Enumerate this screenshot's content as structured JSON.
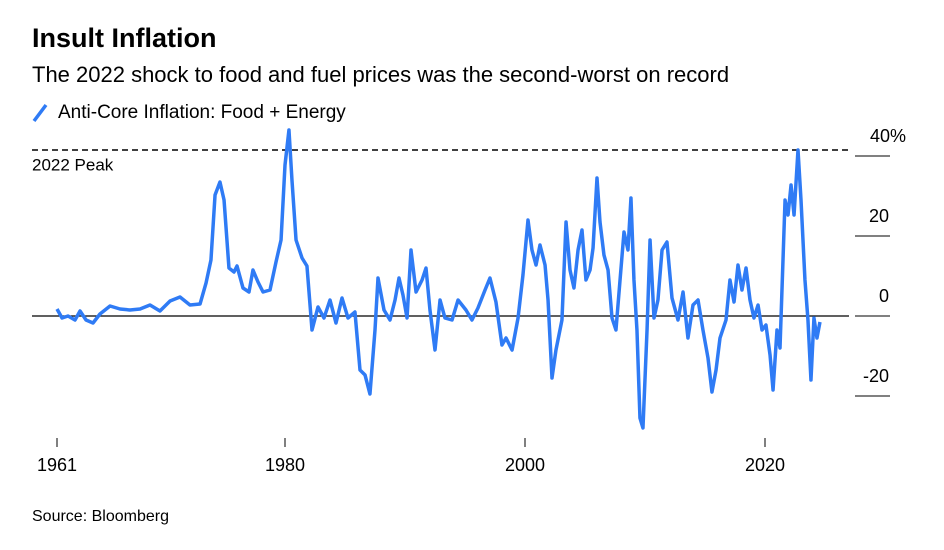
{
  "chart_data": {
    "type": "line",
    "title": "Insult Inflation",
    "subtitle": "The 2022 shock to food and fuel prices was the second-worst on record",
    "source": "Source: Bloomberg",
    "annotation": {
      "label": "2022 Peak",
      "value": 41.5
    },
    "x": [
      1961.0,
      1961.42,
      1961.92,
      1962.5,
      1962.92,
      1963.42,
      1964.0,
      1964.58,
      1965.42,
      1966.25,
      1967.08,
      1967.92,
      1968.75,
      1969.58,
      1970.42,
      1971.25,
      1972.08,
      1972.92,
      1973.42,
      1973.83,
      1974.17,
      1974.58,
      1974.92,
      1975.33,
      1975.75,
      1976.0,
      1976.5,
      1977.0,
      1977.33,
      1977.75,
      1978.17,
      1978.75,
      1979.25,
      1979.67,
      1980.0,
      1980.33,
      1980.58,
      1980.92,
      1981.42,
      1981.83,
      1982.25,
      1982.75,
      1983.25,
      1983.75,
      1984.25,
      1984.75,
      1985.25,
      1985.83,
      1986.25,
      1986.67,
      1987.08,
      1987.5,
      1987.75,
      1988.25,
      1988.75,
      1989.17,
      1989.5,
      1989.83,
      1990.17,
      1990.5,
      1990.92,
      1991.42,
      1991.75,
      1992.08,
      1992.5,
      1992.92,
      1993.33,
      1993.92,
      1994.42,
      1995.08,
      1995.58,
      1996.08,
      1996.67,
      1997.08,
      1997.58,
      1998.08,
      1998.42,
      1998.92,
      1999.42,
      1999.83,
      2000.25,
      2000.58,
      2000.92,
      2001.25,
      2001.67,
      2001.92,
      2002.25,
      2002.58,
      2003.08,
      2003.42,
      2003.75,
      2004.08,
      2004.42,
      2004.75,
      2005.08,
      2005.42,
      2005.67,
      2006.0,
      2006.25,
      2006.58,
      2006.92,
      2007.25,
      2007.58,
      2007.92,
      2008.25,
      2008.58,
      2008.83,
      2009.08,
      2009.33,
      2009.58,
      2009.83,
      2010.17,
      2010.42,
      2010.75,
      2011.08,
      2011.42,
      2011.83,
      2012.25,
      2012.75,
      2013.17,
      2013.58,
      2014.0,
      2014.42,
      2014.83,
      2015.25,
      2015.58,
      2015.92,
      2016.25,
      2016.75,
      2017.08,
      2017.42,
      2017.75,
      2018.08,
      2018.42,
      2018.75,
      2019.08,
      2019.42,
      2019.75,
      2020.08,
      2020.42,
      2020.67,
      2021.0,
      2021.25,
      2021.67,
      2021.92,
      2022.17,
      2022.42,
      2022.75,
      2023.0,
      2023.33,
      2023.58,
      2023.83,
      2024.08,
      2024.33,
      2024.58
    ],
    "series": [
      {
        "name": "Anti-Core Inflation: Food + Energy",
        "color": "#2f7bf5",
        "values": [
          1.75,
          -0.5,
          0,
          -1,
          1.25,
          -1,
          -1.75,
          0.5,
          2.5,
          1.75,
          1.5,
          1.75,
          2.75,
          1.25,
          3.75,
          4.75,
          2.75,
          3,
          8.25,
          14,
          30.25,
          33.5,
          29,
          12,
          11,
          12.5,
          7,
          6,
          11.5,
          8.5,
          6,
          6.5,
          13.5,
          19,
          37.75,
          46.5,
          34,
          19,
          14.5,
          12.5,
          -3.5,
          2.25,
          -0.5,
          4,
          -1.75,
          4.5,
          -0.5,
          1,
          -13.5,
          -14.75,
          -19.5,
          -3.5,
          9.5,
          1.5,
          -1,
          4,
          9.5,
          5.25,
          -0.5,
          16.5,
          6,
          9,
          12,
          1.5,
          -8.5,
          4,
          -0.5,
          -1,
          4,
          1.5,
          -1,
          2,
          6.5,
          9.5,
          3.5,
          -7.25,
          -5.5,
          -8.5,
          -0.5,
          10.25,
          24,
          16.5,
          12.75,
          17.75,
          12.75,
          4,
          -15.5,
          -8.5,
          -1,
          23.5,
          11.5,
          7,
          16.5,
          21.5,
          9,
          11.5,
          17,
          34.5,
          23.5,
          15.25,
          11.5,
          -0.5,
          -3.5,
          9,
          21,
          16.5,
          29.5,
          9,
          -3.5,
          -25.5,
          -28,
          -3.5,
          19,
          -0.5,
          4,
          16.5,
          18.5,
          4.5,
          -1,
          6,
          -5.5,
          2.75,
          4,
          -3.5,
          -10.5,
          -19,
          -13.5,
          -5.5,
          -1,
          9,
          3.5,
          12.75,
          6.5,
          12,
          4,
          -0.5,
          2.75,
          -3.5,
          -2.25,
          -9.75,
          -18.5,
          -3.5,
          -8,
          29,
          25.25,
          32.75,
          25.25,
          41.5,
          29,
          9,
          -1,
          -16,
          -0.5,
          -5.5,
          -1.5
        ]
      }
    ],
    "xlim": [
      1959,
      2027
    ],
    "xticks": [
      1961,
      1980,
      2000,
      2020
    ],
    "ylim": [
      -30,
      48
    ],
    "yticks": [
      -20,
      0,
      20,
      {
        "value": 40,
        "label": "40%"
      }
    ]
  }
}
